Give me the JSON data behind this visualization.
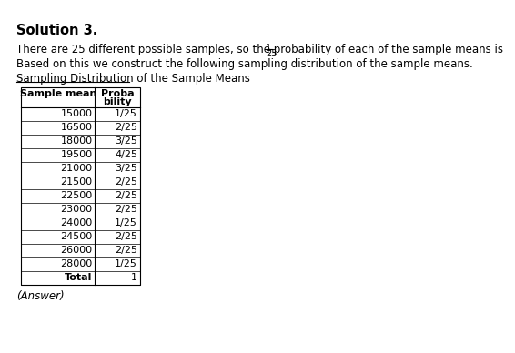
{
  "title": "Solution 3.",
  "line1": "There are 25 different possible samples, so the probability of each of the sample means is ",
  "line2": "Based on this we construct the following sampling distribution of the sample means.",
  "table_title": "Sampling Distribution of the Sample Means",
  "col1_header": "Sample mean",
  "col2_header_line1": "Proba",
  "col2_header_line2": "bility",
  "rows": [
    [
      "15000",
      "1/25"
    ],
    [
      "16500",
      "2/25"
    ],
    [
      "18000",
      "3/25"
    ],
    [
      "19500",
      "4/25"
    ],
    [
      "21000",
      "3/25"
    ],
    [
      "21500",
      "2/25"
    ],
    [
      "22500",
      "2/25"
    ],
    [
      "23000",
      "2/25"
    ],
    [
      "24000",
      "1/25"
    ],
    [
      "24500",
      "2/25"
    ],
    [
      "26000",
      "2/25"
    ],
    [
      "28000",
      "1/25"
    ]
  ],
  "total_label": "Total",
  "total_value": "1",
  "answer_label": "(Answer)",
  "bg_color": "#ffffff",
  "text_color": "#000000",
  "font_size_title": 10.5,
  "font_size_body": 8.5,
  "font_size_table": 8.0
}
